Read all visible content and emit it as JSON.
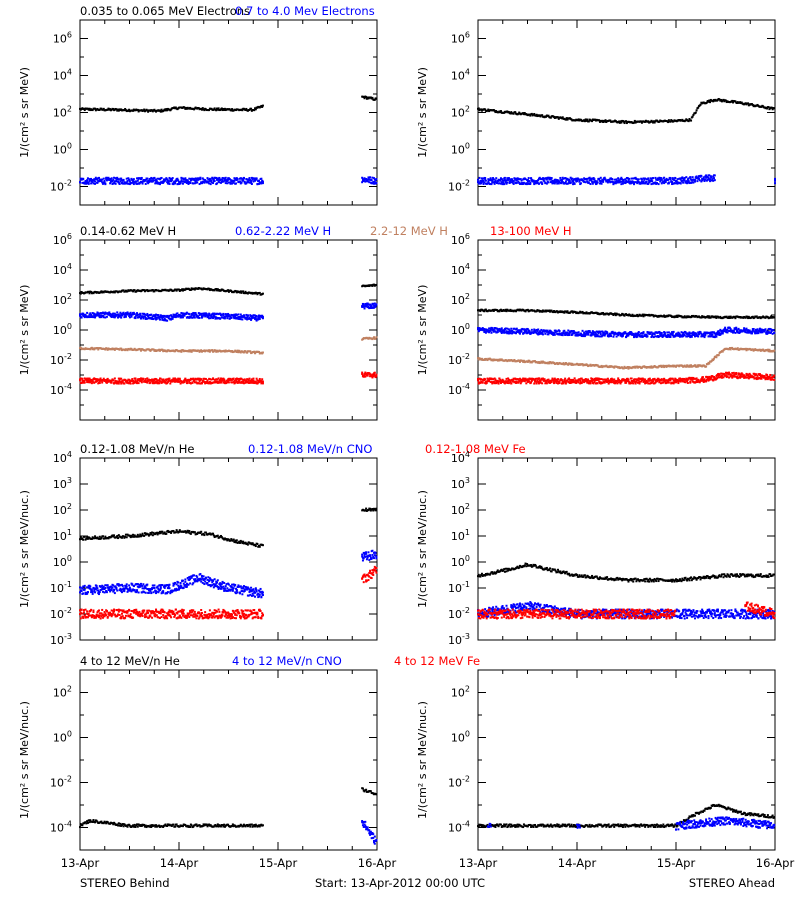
{
  "colors": {
    "black": "#000000",
    "blue": "#0000ff",
    "tan": "#c08060",
    "red": "#ff0000"
  },
  "x_ticks": [
    "13-Apr",
    "14-Apr",
    "15-Apr",
    "16-Apr"
  ],
  "footer": {
    "left": "STEREO Behind",
    "center": "Start: 13-Apr-2012 00:00 UTC",
    "right": "STEREO Ahead"
  },
  "chart_data": [
    {
      "type": "scatter",
      "row": 0,
      "spacecraft": "STEREO Behind",
      "ylabel": "1/(cm² s sr MeV)",
      "yscale": "log",
      "ylim_exp": [
        -3,
        7
      ],
      "y_tick_exps": [
        -2,
        0,
        2,
        4,
        6
      ],
      "legend": [
        {
          "text": "0.035 to 0.065 MeV Electrons",
          "color": "#000000"
        },
        {
          "text": "0.7 to 4.0 Mev Electrons",
          "color": "#0000ff"
        }
      ],
      "series": [
        {
          "color": "#000000",
          "points": [
            [
              0.0,
              150
            ],
            [
              0.4,
              140
            ],
            [
              0.8,
              120
            ],
            [
              1.0,
              180
            ],
            [
              1.3,
              150
            ],
            [
              1.6,
              140
            ],
            [
              1.75,
              140
            ],
            [
              1.85,
              220
            ],
            [
              2.85,
              700
            ],
            [
              3.0,
              500
            ]
          ]
        },
        {
          "color": "#0000ff",
          "points": [
            [
              0.0,
              0.02
            ],
            [
              0.5,
              0.02
            ],
            [
              1.0,
              0.02
            ],
            [
              1.5,
              0.02
            ],
            [
              1.85,
              0.02
            ],
            [
              2.85,
              0.025
            ],
            [
              3.0,
              0.02
            ]
          ]
        }
      ]
    },
    {
      "type": "scatter",
      "row": 0,
      "spacecraft": "STEREO Ahead",
      "ylabel": "1/(cm² s sr MeV)",
      "yscale": "log",
      "ylim_exp": [
        -3,
        7
      ],
      "y_tick_exps": [
        -2,
        0,
        2,
        4,
        6
      ],
      "legend": [],
      "series": [
        {
          "color": "#000000",
          "points": [
            [
              0.0,
              150
            ],
            [
              0.5,
              80
            ],
            [
              1.0,
              40
            ],
            [
              1.5,
              30
            ],
            [
              2.0,
              35
            ],
            [
              2.15,
              40
            ],
            [
              2.25,
              300
            ],
            [
              2.4,
              500
            ],
            [
              2.7,
              300
            ],
            [
              3.0,
              150
            ]
          ]
        },
        {
          "color": "#0000ff",
          "points": [
            [
              0.0,
              0.02
            ],
            [
              0.5,
              0.02
            ],
            [
              1.0,
              0.02
            ],
            [
              1.5,
              0.02
            ],
            [
              2.0,
              0.02
            ],
            [
              2.4,
              0.03
            ],
            [
              3.0,
              0.02
            ]
          ]
        }
      ]
    },
    {
      "type": "scatter",
      "row": 1,
      "spacecraft": "STEREO Behind",
      "ylabel": "1/(cm² s sr MeV)",
      "yscale": "log",
      "ylim_exp": [
        -6,
        6
      ],
      "y_tick_exps": [
        -4,
        -2,
        0,
        2,
        4,
        6
      ],
      "legend": [
        {
          "text": "0.14-0.62 MeV H",
          "color": "#000000"
        },
        {
          "text": "0.62-2.22 MeV H",
          "color": "#0000ff"
        },
        {
          "text": "2.2-12 MeV H",
          "color": "#c08060"
        },
        {
          "text": "13-100 MeV H",
          "color": "#ff0000"
        }
      ],
      "series": [
        {
          "color": "#000000",
          "points": [
            [
              0.0,
              300
            ],
            [
              0.5,
              400
            ],
            [
              1.0,
              450
            ],
            [
              1.2,
              600
            ],
            [
              1.5,
              400
            ],
            [
              1.85,
              250
            ],
            [
              2.85,
              800
            ],
            [
              3.0,
              1000
            ]
          ]
        },
        {
          "color": "#0000ff",
          "points": [
            [
              0.0,
              10
            ],
            [
              0.5,
              10
            ],
            [
              0.9,
              6
            ],
            [
              1.0,
              10
            ],
            [
              1.5,
              8
            ],
            [
              1.85,
              6
            ],
            [
              2.85,
              40
            ],
            [
              3.0,
              40
            ]
          ]
        },
        {
          "color": "#c08060",
          "points": [
            [
              0.0,
              0.06
            ],
            [
              0.5,
              0.05
            ],
            [
              1.0,
              0.04
            ],
            [
              1.5,
              0.04
            ],
            [
              1.85,
              0.03
            ],
            [
              2.85,
              0.25
            ],
            [
              3.0,
              0.3
            ]
          ]
        },
        {
          "color": "#ff0000",
          "points": [
            [
              0.0,
              0.0004
            ],
            [
              0.5,
              0.0004
            ],
            [
              1.0,
              0.0004
            ],
            [
              1.5,
              0.0004
            ],
            [
              1.85,
              0.0004
            ],
            [
              2.85,
              0.001
            ],
            [
              3.0,
              0.001
            ]
          ]
        }
      ]
    },
    {
      "type": "scatter",
      "row": 1,
      "spacecraft": "STEREO Ahead",
      "ylabel": "1/(cm² s sr MeV)",
      "yscale": "log",
      "ylim_exp": [
        -6,
        6
      ],
      "y_tick_exps": [
        -4,
        -2,
        0,
        2,
        4,
        6
      ],
      "legend": [],
      "series": [
        {
          "color": "#000000",
          "points": [
            [
              0.0,
              20
            ],
            [
              0.5,
              20
            ],
            [
              1.0,
              15
            ],
            [
              1.5,
              10
            ],
            [
              2.0,
              8
            ],
            [
              2.5,
              7
            ],
            [
              3.0,
              7
            ]
          ]
        },
        {
          "color": "#0000ff",
          "points": [
            [
              0.0,
              1
            ],
            [
              0.5,
              0.8
            ],
            [
              1.0,
              0.6
            ],
            [
              1.5,
              0.5
            ],
            [
              2.0,
              0.5
            ],
            [
              2.4,
              0.5
            ],
            [
              2.5,
              1
            ],
            [
              3.0,
              0.8
            ]
          ]
        },
        {
          "color": "#c08060",
          "points": [
            [
              0.0,
              0.012
            ],
            [
              0.5,
              0.008
            ],
            [
              1.0,
              0.005
            ],
            [
              1.5,
              0.003
            ],
            [
              2.0,
              0.004
            ],
            [
              2.3,
              0.004
            ],
            [
              2.5,
              0.06
            ],
            [
              3.0,
              0.04
            ]
          ]
        },
        {
          "color": "#ff0000",
          "points": [
            [
              0.0,
              0.0004
            ],
            [
              0.5,
              0.0004
            ],
            [
              1.0,
              0.0004
            ],
            [
              1.5,
              0.0004
            ],
            [
              2.0,
              0.0004
            ],
            [
              2.3,
              0.0005
            ],
            [
              2.5,
              0.001
            ],
            [
              3.0,
              0.0007
            ]
          ]
        }
      ]
    },
    {
      "type": "scatter",
      "row": 2,
      "spacecraft": "STEREO Behind",
      "ylabel": "1/(cm² s sr MeV/nuc.)",
      "yscale": "log",
      "ylim_exp": [
        -3,
        4
      ],
      "y_tick_exps": [
        -3,
        -2,
        -1,
        0,
        1,
        2,
        3,
        4
      ],
      "legend": [
        {
          "text": "0.12-1.08 MeV/n He",
          "color": "#000000"
        },
        {
          "text": "0.12-1.08 MeV/n CNO",
          "color": "#0000ff"
        },
        {
          "text": "0.12-1.08 MeV Fe",
          "color": "#ff0000"
        }
      ],
      "series": [
        {
          "color": "#000000",
          "points": [
            [
              0.0,
              8
            ],
            [
              0.5,
              10
            ],
            [
              1.0,
              15
            ],
            [
              1.3,
              12
            ],
            [
              1.6,
              6
            ],
            [
              1.85,
              4
            ],
            [
              2.85,
              100
            ],
            [
              3.0,
              100
            ]
          ]
        },
        {
          "color": "#0000ff",
          "points": [
            [
              0.0,
              0.08
            ],
            [
              0.5,
              0.1
            ],
            [
              0.9,
              0.09
            ],
            [
              1.2,
              0.25
            ],
            [
              1.5,
              0.1
            ],
            [
              1.85,
              0.06
            ],
            [
              2.85,
              1.5
            ],
            [
              3.0,
              2
            ]
          ]
        },
        {
          "color": "#ff0000",
          "points": [
            [
              0.0,
              0.01
            ],
            [
              0.5,
              0.01
            ],
            [
              1.0,
              0.01
            ],
            [
              1.5,
              0.01
            ],
            [
              1.85,
              0.01
            ],
            [
              2.85,
              0.2
            ],
            [
              3.0,
              0.5
            ]
          ]
        }
      ]
    },
    {
      "type": "scatter",
      "row": 2,
      "spacecraft": "STEREO Ahead",
      "ylabel": "1/(cm² s sr MeV/nuc.)",
      "yscale": "log",
      "ylim_exp": [
        -3,
        4
      ],
      "y_tick_exps": [
        -3,
        -2,
        -1,
        0,
        1,
        2,
        3,
        4
      ],
      "legend": [],
      "series": [
        {
          "color": "#000000",
          "points": [
            [
              0.0,
              0.3
            ],
            [
              0.3,
              0.5
            ],
            [
              0.5,
              0.8
            ],
            [
              1.0,
              0.3
            ],
            [
              1.5,
              0.2
            ],
            [
              2.0,
              0.2
            ],
            [
              2.5,
              0.3
            ],
            [
              3.0,
              0.3
            ]
          ]
        },
        {
          "color": "#0000ff",
          "points": [
            [
              0.0,
              0.01
            ],
            [
              0.5,
              0.02
            ],
            [
              1.0,
              0.01
            ],
            [
              1.5,
              0.01
            ],
            [
              2.0,
              0.01
            ],
            [
              2.5,
              0.01
            ],
            [
              3.0,
              0.01
            ]
          ]
        },
        {
          "color": "#ff0000",
          "points": [
            [
              0.0,
              0.01
            ],
            [
              0.5,
              0.01
            ],
            [
              1.0,
              0.01
            ],
            [
              1.5,
              0.01
            ],
            [
              2.0,
              0.01
            ],
            [
              2.7,
              0.02
            ],
            [
              3.0,
              0.01
            ]
          ]
        }
      ]
    },
    {
      "type": "scatter",
      "row": 3,
      "spacecraft": "STEREO Behind",
      "ylabel": "1/(cm² s sr MeV/nuc.)",
      "yscale": "log",
      "ylim_exp": [
        -5,
        3
      ],
      "y_tick_exps": [
        -4,
        -2,
        0,
        2
      ],
      "legend": [
        {
          "text": "4 to 12 MeV/n He",
          "color": "#000000"
        },
        {
          "text": "4 to 12 MeV/n CNO",
          "color": "#0000ff"
        },
        {
          "text": "4 to 12 MeV Fe",
          "color": "#ff0000"
        }
      ],
      "series": [
        {
          "color": "#000000",
          "points": [
            [
              0.0,
              0.00012
            ],
            [
              0.1,
              0.0002
            ],
            [
              0.5,
              0.00012
            ],
            [
              1.0,
              0.00012
            ],
            [
              1.5,
              0.00012
            ],
            [
              1.85,
              0.00012
            ],
            [
              2.85,
              0.005
            ],
            [
              3.0,
              0.003
            ]
          ]
        },
        {
          "color": "#0000ff",
          "points": [
            [
              2.85,
              0.0002
            ],
            [
              3.0,
              2e-05
            ]
          ]
        }
      ]
    },
    {
      "type": "scatter",
      "row": 3,
      "spacecraft": "STEREO Ahead",
      "ylabel": "1/(cm² s sr MeV/nuc.)",
      "yscale": "log",
      "ylim_exp": [
        -5,
        3
      ],
      "y_tick_exps": [
        -4,
        -2,
        0,
        2
      ],
      "legend": [],
      "series": [
        {
          "color": "#000000",
          "points": [
            [
              0.0,
              0.00012
            ],
            [
              0.5,
              0.00012
            ],
            [
              1.0,
              0.00012
            ],
            [
              1.5,
              0.00012
            ],
            [
              2.0,
              0.00012
            ],
            [
              2.2,
              0.0004
            ],
            [
              2.4,
              0.001
            ],
            [
              2.7,
              0.0004
            ],
            [
              3.0,
              0.0003
            ]
          ]
        },
        {
          "color": "#0000ff",
          "points": [
            [
              0.1,
              0.00012
            ],
            [
              1.0,
              0.00012
            ],
            [
              2.0,
              0.00012
            ],
            [
              2.5,
              0.0002
            ],
            [
              3.0,
              0.00012
            ]
          ]
        }
      ]
    }
  ]
}
